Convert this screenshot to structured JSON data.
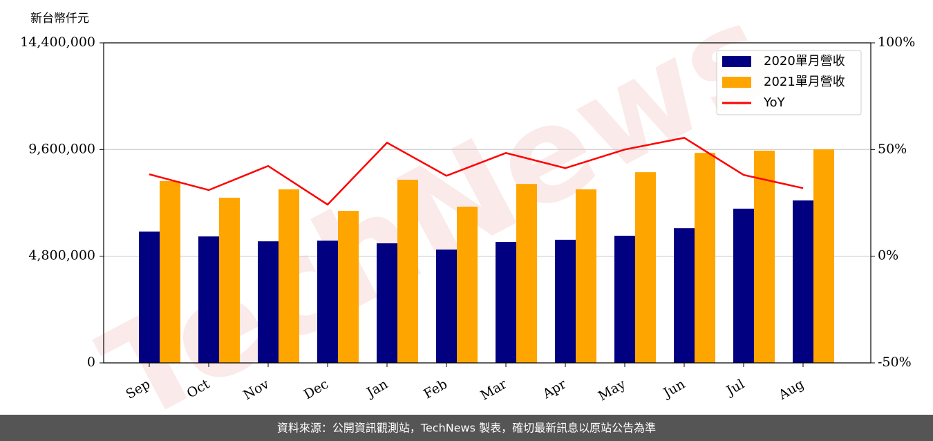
{
  "chart_data": {
    "type": "bar",
    "y_label": "新台幣仟元",
    "watermark": "TechNews",
    "source": "資料來源：公開資訊觀測站，TechNews 製表，確切最新訊息以原站公告為準",
    "categories": [
      "Sep",
      "Oct",
      "Nov",
      "Dec",
      "Jan",
      "Feb",
      "Mar",
      "Apr",
      "May",
      "Jun",
      "Jul",
      "Aug"
    ],
    "series": [
      {
        "name": "2020單月營收",
        "color": "#000080",
        "values": [
          5910000,
          5690000,
          5470000,
          5500000,
          5380000,
          5100000,
          5440000,
          5540000,
          5720000,
          6060000,
          6940000,
          7310000
        ]
      },
      {
        "name": "2021單月營收",
        "color": "#ffa500",
        "values": [
          8180000,
          7430000,
          7810000,
          6840000,
          8240000,
          7030000,
          8050000,
          7810000,
          8580000,
          9450000,
          9550000,
          9610000
        ]
      },
      {
        "name": "YoY",
        "color": "#ff0000",
        "type": "line",
        "axis": "y2",
        "values": [
          38.4,
          31,
          42.3,
          24.2,
          53.2,
          37.7,
          48.4,
          41.3,
          50,
          55.5,
          38.1,
          31.9
        ]
      }
    ],
    "ylim": [
      0,
      14400000
    ],
    "yticks": [
      0,
      {
        "value": 4800000,
        "label": "4,800,000"
      },
      {
        "value": 9600000,
        "label": "9,600,000"
      },
      {
        "value": 14400000,
        "label": "14,400,000"
      }
    ],
    "y2lim": [
      -50,
      100
    ],
    "y2ticks": [
      {
        "value": -50,
        "label": "-50%"
      },
      {
        "value": 0,
        "label": "0%"
      },
      {
        "value": 50,
        "label": "50%"
      },
      {
        "value": 100,
        "label": "100%"
      }
    ],
    "grid": true,
    "legend": "upper right"
  }
}
